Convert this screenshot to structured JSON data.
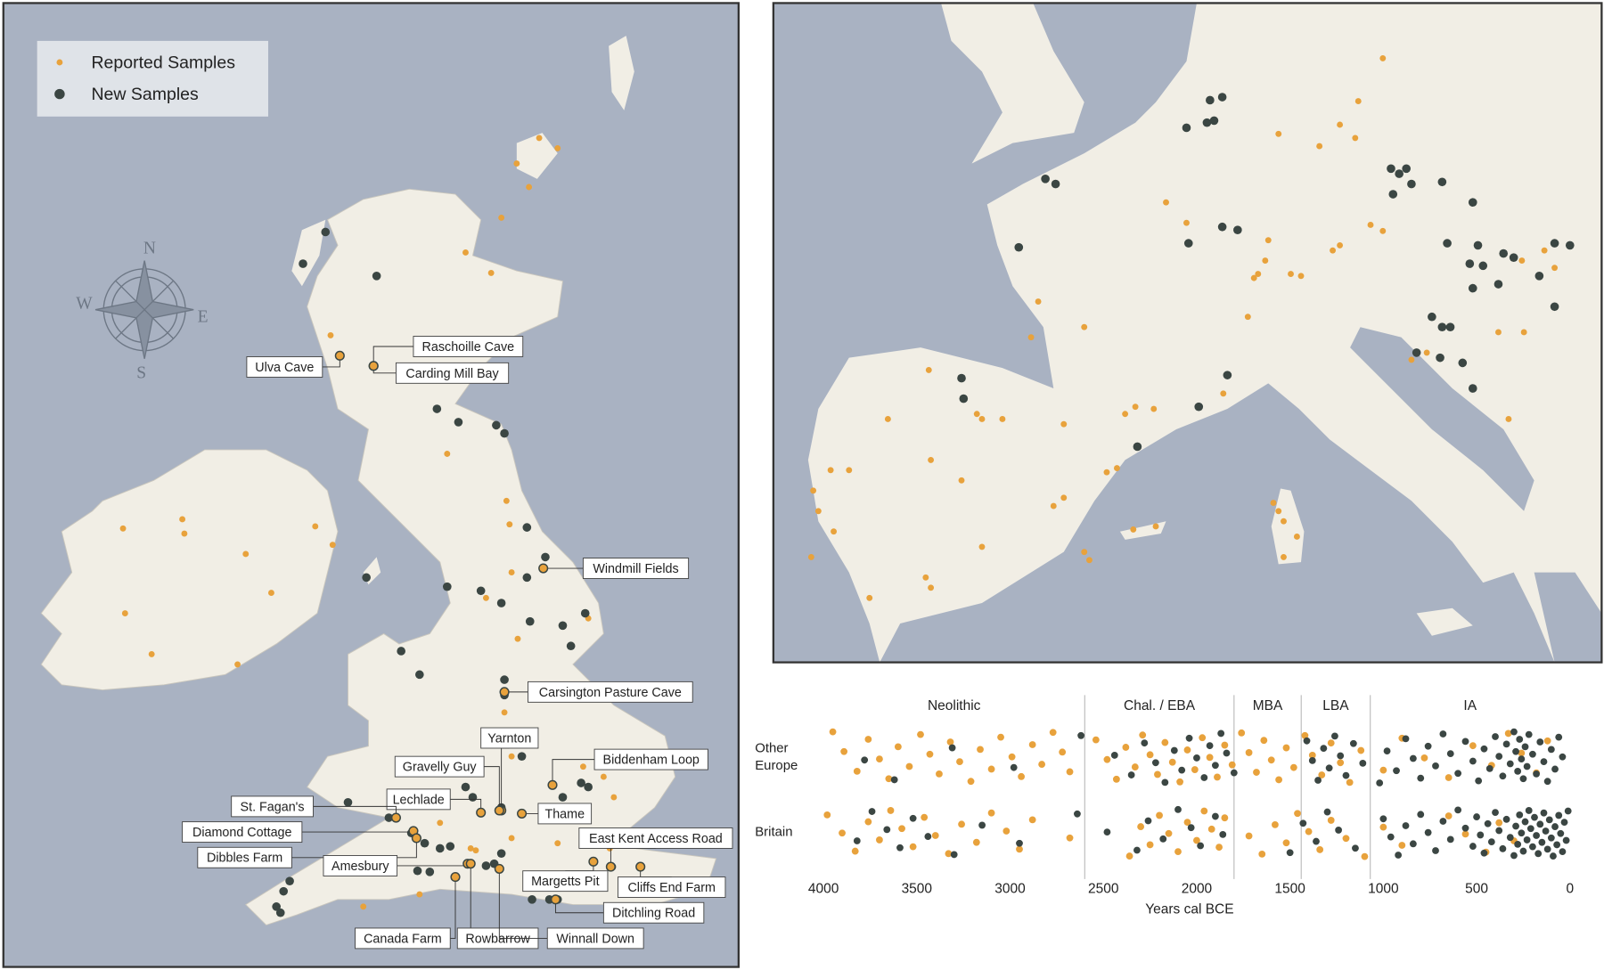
{
  "maps": [
    {
      "legend": [
        {
          "name": "Reported Samples",
          "color": "#e8a23c"
        },
        {
          "name": "New Samples",
          "color": "#3b4643"
        }
      ],
      "compass": [
        "N",
        "E",
        "S",
        "W"
      ],
      "sites": [
        "Raschoille Cave",
        "Ulva Cave",
        "Carding Mill Bay",
        "Windmill Fields",
        "Carsington Pasture Cave",
        "Yarnton",
        "Biddenham Loop",
        "Gravelly Guy",
        "Lechlade",
        "Thame",
        "St. Fagan's",
        "Diamond Cottage",
        "East Kent Access Road",
        "Dibbles Farm",
        "Amesbury",
        "Margetts Pit",
        "Cliffs End Farm",
        "Ditchling Road",
        "Canada Farm",
        "Rowbarrow",
        "Winnall Down"
      ]
    }
  ],
  "chart_data": {
    "type": "strip",
    "xlabel": "Years cal BCE",
    "xlim": [
      4000,
      0
    ],
    "xticks": [
      4000,
      3500,
      3000,
      2500,
      2000,
      1500,
      1000,
      500,
      0
    ],
    "periods": [
      "Neolithic",
      "Chal. / EBA",
      "MBA",
      "LBA",
      "IA"
    ],
    "period_bounds": [
      2600,
      1800,
      1440,
      1070
    ],
    "rows": [
      {
        "label": "Other Europe",
        "series": [
          {
            "color": "#e8a23c",
            "values": [
              3950,
              3890,
              3820,
              3760,
              3700,
              3650,
              3600,
              3540,
              3480,
              3430,
              3380,
              3320,
              3270,
              3210,
              3160,
              3100,
              3050,
              2990,
              2940,
              2880,
              2830,
              2770,
              2720,
              2680,
              2540,
              2480,
              2430,
              2380,
              2330,
              2290,
              2250,
              2210,
              2170,
              2130,
              2090,
              2050,
              2010,
              1970,
              1930,
              1890,
              1850,
              1810,
              1760,
              1720,
              1680,
              1640,
              1600,
              1560,
              1520,
              1480,
              1420,
              1380,
              1330,
              1280,
              1230,
              1180,
              1120,
              1000,
              900,
              780,
              650,
              520,
              420,
              330,
              260,
              180,
              120
            ]
          },
          {
            "color": "#3b4643",
            "values": [
              3780,
              3620,
              3310,
              2980,
              2620,
              2440,
              2350,
              2280,
              2220,
              2170,
              2120,
              2080,
              2040,
              2000,
              1960,
              1930,
              1900,
              1870,
              1840,
              1800,
              1410,
              1380,
              1350,
              1320,
              1290,
              1260,
              1230,
              1200,
              1160,
              1110,
              1020,
              980,
              930,
              880,
              840,
              800,
              760,
              720,
              680,
              640,
              600,
              560,
              520,
              490,
              460,
              430,
              400,
              380,
              360,
              340,
              320,
              300,
              290,
              280,
              270,
              260,
              250,
              240,
              230,
              220,
              200,
              180,
              160,
              140,
              120,
              100,
              80,
              60,
              40
            ]
          }
        ]
      },
      {
        "label": "Britain",
        "series": [
          {
            "color": "#e8a23c",
            "values": [
              3980,
              3900,
              3830,
              3760,
              3700,
              3640,
              3580,
              3520,
              3460,
              3400,
              3330,
              3260,
              3180,
              3100,
              3020,
              2950,
              2880,
              2680,
              2360,
              2300,
              2250,
              2200,
              2150,
              2100,
              2050,
              2000,
              1960,
              1920,
              1880,
              1850,
              1720,
              1650,
              1580,
              1520,
              1460,
              1400,
              1340,
              1280,
              1200,
              1100,
              1000,
              900,
              650,
              560,
              450,
              380,
              300
            ]
          },
          {
            "color": "#3b4643",
            "values": [
              3820,
              3740,
              3660,
              3590,
              3520,
              3440,
              3300,
              3150,
              2950,
              2640,
              2480,
              2320,
              2260,
              2180,
              2100,
              2030,
              1980,
              1900,
              1860,
              1500,
              1430,
              1360,
              1300,
              1240,
              1150,
              1000,
              960,
              920,
              880,
              840,
              800,
              760,
              720,
              680,
              640,
              600,
              560,
              520,
              500,
              480,
              460,
              440,
              420,
              400,
              380,
              360,
              340,
              320,
              300,
              290,
              280,
              270,
              260,
              250,
              240,
              230,
              220,
              210,
              200,
              190,
              180,
              170,
              160,
              150,
              140,
              130,
              120,
              110,
              100,
              90,
              80,
              70,
              60,
              50,
              40,
              30,
              20,
              10
            ]
          }
        ]
      }
    ]
  }
}
